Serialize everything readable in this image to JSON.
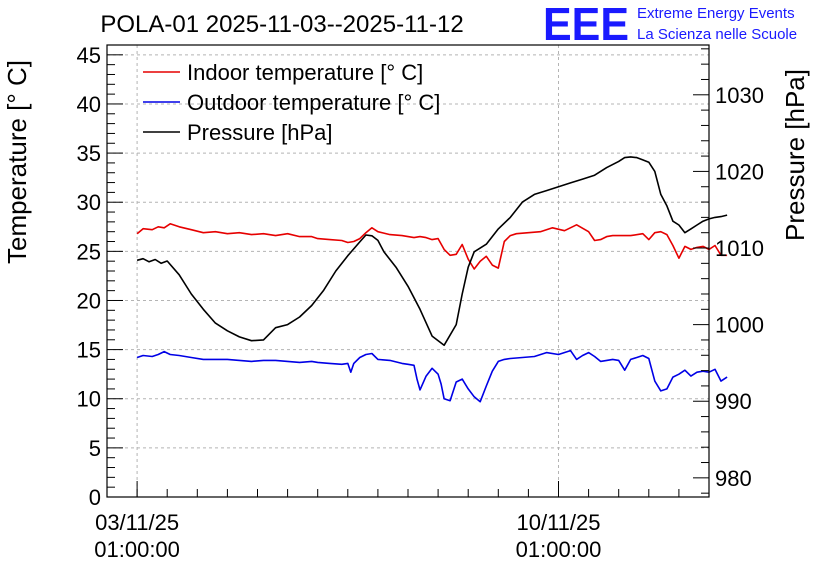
{
  "colors": {
    "indoor": "#e60000",
    "outdoor": "#0000e6",
    "pressure": "#000000",
    "logo": "#1a1aff"
  },
  "logo": {
    "mark": "EEE",
    "line1": "Extreme Energy Events",
    "line2": "La Scienza nelle Scuole"
  },
  "chart_data": {
    "type": "line",
    "title": "POLA-01 2025-11-03--2025-11-12",
    "xlabel": "",
    "ylabel": "Temperature [° C]",
    "y2label": "Pressure [hPa]",
    "xlim": [
      -0.5,
      9.5
    ],
    "ylim": [
      0,
      46
    ],
    "y2lim": [
      977.5,
      1036.5
    ],
    "x_unit": "days since 03/11/25 01:00:00",
    "x_ticks": [
      {
        "value": 0,
        "line1": "03/11/25",
        "line2": "01:00:00"
      },
      {
        "value": 7,
        "line1": "10/11/25",
        "line2": "01:00:00"
      }
    ],
    "y_ticks": [
      0,
      5,
      10,
      15,
      20,
      25,
      30,
      35,
      40,
      45
    ],
    "y2_ticks": [
      980,
      990,
      1000,
      1010,
      1020,
      1030
    ],
    "grid": true,
    "legend_position": "top-left",
    "series": [
      {
        "name": "Indoor temperature [° C]",
        "axis": "left",
        "color": "#e60000",
        "x": [
          0.0,
          0.1,
          0.25,
          0.35,
          0.45,
          0.55,
          0.7,
          0.9,
          1.1,
          1.3,
          1.5,
          1.7,
          1.9,
          2.1,
          2.3,
          2.5,
          2.7,
          2.9,
          3.0,
          3.2,
          3.4,
          3.5,
          3.6,
          3.7,
          3.8,
          3.9,
          4.0,
          4.2,
          4.4,
          4.5,
          4.6,
          4.7,
          4.8,
          4.9,
          5.0,
          5.1,
          5.2,
          5.3,
          5.4,
          5.5,
          5.6,
          5.7,
          5.8,
          5.9,
          6.0,
          6.1,
          6.2,
          6.3,
          6.5,
          6.7,
          6.9,
          7.1,
          7.3,
          7.5,
          7.6,
          7.7,
          7.8,
          7.9,
          8.0,
          8.2,
          8.4,
          8.5,
          8.6,
          8.7,
          8.8,
          8.9,
          9.0,
          9.1,
          9.2,
          9.3,
          9.4,
          9.5,
          9.6,
          9.7,
          9.8
        ],
        "values": [
          26.8,
          27.3,
          27.2,
          27.5,
          27.4,
          27.8,
          27.5,
          27.2,
          26.9,
          27.0,
          26.8,
          26.9,
          26.7,
          26.8,
          26.6,
          26.8,
          26.5,
          26.5,
          26.3,
          26.2,
          26.1,
          25.9,
          26.0,
          26.3,
          26.9,
          27.4,
          27.0,
          26.7,
          26.6,
          26.5,
          26.4,
          26.5,
          26.4,
          26.2,
          26.3,
          25.2,
          24.6,
          24.7,
          25.7,
          24.2,
          23.2,
          24.0,
          24.5,
          23.6,
          23.3,
          26.0,
          26.6,
          26.8,
          26.9,
          27.0,
          27.4,
          27.1,
          27.7,
          27.0,
          26.1,
          26.2,
          26.5,
          26.6,
          26.6,
          26.6,
          26.8,
          26.2,
          26.9,
          27.0,
          26.7,
          25.6,
          24.3,
          25.5,
          25.2,
          25.4,
          25.5,
          25.2,
          25.6,
          24.6,
          24.6
        ]
      },
      {
        "name": "Outdoor temperature [° C]",
        "axis": "left",
        "color": "#0000e6",
        "x": [
          0.0,
          0.1,
          0.25,
          0.35,
          0.45,
          0.55,
          0.7,
          0.9,
          1.1,
          1.3,
          1.5,
          1.7,
          1.9,
          2.1,
          2.3,
          2.5,
          2.7,
          2.9,
          3.0,
          3.2,
          3.4,
          3.5,
          3.55,
          3.6,
          3.7,
          3.8,
          3.9,
          4.0,
          4.2,
          4.4,
          4.5,
          4.6,
          4.65,
          4.7,
          4.8,
          4.9,
          5.0,
          5.05,
          5.1,
          5.2,
          5.3,
          5.4,
          5.5,
          5.6,
          5.7,
          5.8,
          5.9,
          6.0,
          6.1,
          6.2,
          6.4,
          6.6,
          6.8,
          7.0,
          7.2,
          7.3,
          7.4,
          7.5,
          7.6,
          7.7,
          7.8,
          7.9,
          8.0,
          8.1,
          8.2,
          8.3,
          8.4,
          8.5,
          8.6,
          8.7,
          8.8,
          8.9,
          9.0,
          9.1,
          9.2,
          9.3,
          9.4,
          9.5,
          9.6,
          9.7,
          9.8
        ],
        "values": [
          14.2,
          14.4,
          14.3,
          14.5,
          14.8,
          14.5,
          14.4,
          14.2,
          14.0,
          14.0,
          14.0,
          13.9,
          13.8,
          13.9,
          13.9,
          13.8,
          13.7,
          13.8,
          13.7,
          13.6,
          13.5,
          13.6,
          12.7,
          13.6,
          14.2,
          14.5,
          14.6,
          14.0,
          13.9,
          13.6,
          13.5,
          13.4,
          12.0,
          10.9,
          12.3,
          13.1,
          12.5,
          11.5,
          10.0,
          9.8,
          11.7,
          12.0,
          11.0,
          10.2,
          9.7,
          11.3,
          12.8,
          13.8,
          14.0,
          14.1,
          14.2,
          14.3,
          14.7,
          14.5,
          14.9,
          14.0,
          14.4,
          14.7,
          14.3,
          13.8,
          13.9,
          14.0,
          13.9,
          12.9,
          14.0,
          14.2,
          14.4,
          14.1,
          11.8,
          10.8,
          11.0,
          12.2,
          12.5,
          12.9,
          12.3,
          12.7,
          12.8,
          12.7,
          13.0,
          11.8,
          12.2
        ]
      },
      {
        "name": "Pressure [hPa]",
        "axis": "right",
        "color": "#000000",
        "x": [
          0.0,
          0.1,
          0.2,
          0.3,
          0.4,
          0.5,
          0.7,
          0.9,
          1.1,
          1.3,
          1.5,
          1.7,
          1.9,
          2.1,
          2.3,
          2.5,
          2.7,
          2.9,
          3.1,
          3.3,
          3.5,
          3.7,
          3.8,
          3.9,
          4.0,
          4.1,
          4.3,
          4.5,
          4.7,
          4.9,
          5.1,
          5.3,
          5.4,
          5.5,
          5.6,
          5.8,
          6.0,
          6.2,
          6.4,
          6.6,
          6.8,
          7.0,
          7.2,
          7.4,
          7.6,
          7.8,
          8.0,
          8.1,
          8.2,
          8.3,
          8.4,
          8.5,
          8.6,
          8.7,
          8.8,
          8.9,
          9.0,
          9.1,
          9.2,
          9.3,
          9.4,
          9.5,
          9.6,
          9.7,
          9.8
        ],
        "values": [
          1008.4,
          1008.6,
          1008.2,
          1008.5,
          1008.0,
          1008.3,
          1006.5,
          1004.0,
          1002.0,
          1000.2,
          999.2,
          998.4,
          997.9,
          998.0,
          999.6,
          1000.0,
          1001.0,
          1002.5,
          1004.5,
          1007.0,
          1009.0,
          1010.8,
          1011.7,
          1011.6,
          1011.0,
          1009.5,
          1007.5,
          1005.0,
          1002.0,
          998.5,
          997.3,
          1000.0,
          1004.0,
          1007.5,
          1009.5,
          1010.5,
          1012.5,
          1014.0,
          1016.0,
          1017.0,
          1017.5,
          1018.0,
          1018.5,
          1019.0,
          1019.5,
          1020.5,
          1021.3,
          1021.8,
          1021.9,
          1021.8,
          1021.5,
          1021.2,
          1020.0,
          1017.0,
          1015.5,
          1013.5,
          1013.0,
          1012.0,
          1012.5,
          1013.0,
          1013.5,
          1013.8,
          1014.0,
          1014.1,
          1014.3
        ]
      }
    ]
  }
}
